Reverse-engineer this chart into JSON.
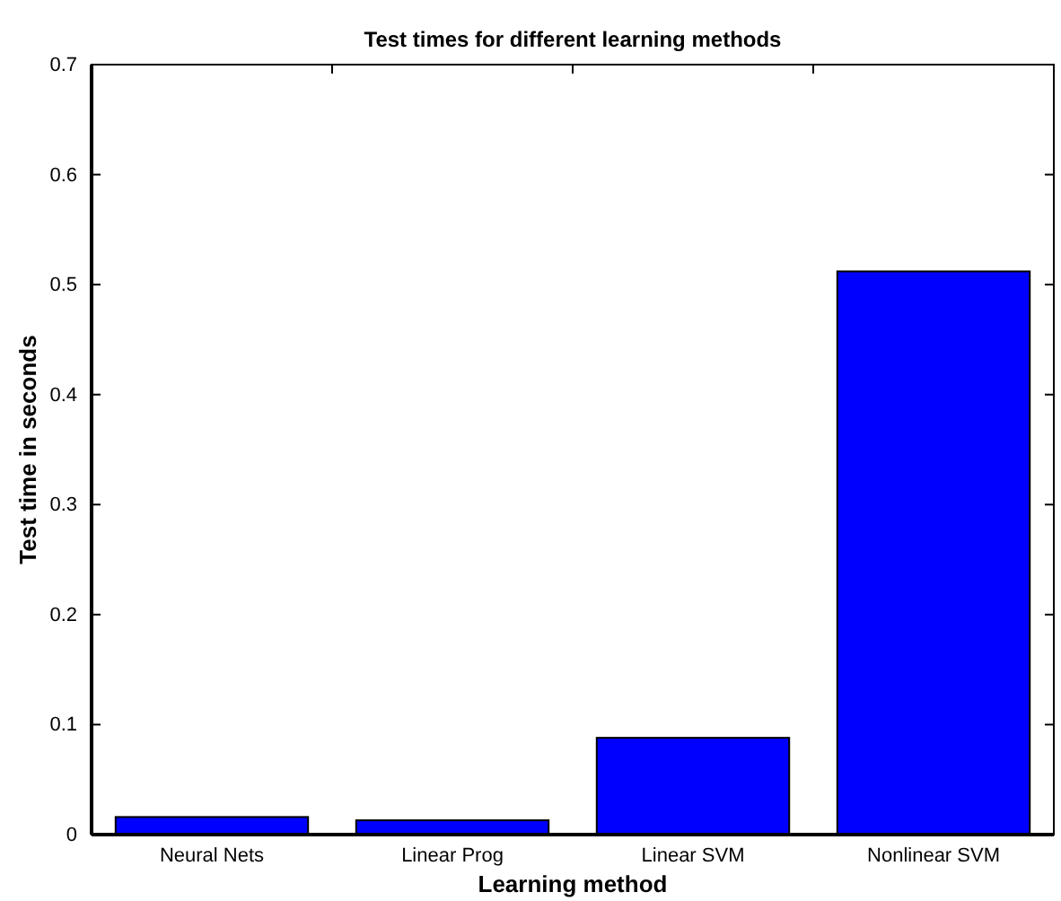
{
  "chart_data": {
    "type": "bar",
    "title": "Test times for different learning methods",
    "xlabel": "Learning method",
    "ylabel": "Test time in seconds",
    "categories": [
      "Neural Nets",
      "Linear Prog",
      "Linear SVM",
      "Nonlinear SVM"
    ],
    "values": [
      0.016,
      0.013,
      0.088,
      0.512
    ],
    "color": "#0000ff",
    "ylim": [
      0,
      0.7
    ],
    "yticks": [
      0,
      0.1,
      0.2,
      0.3,
      0.4,
      0.5,
      0.6,
      0.7
    ],
    "grid": false,
    "legend": false
  }
}
